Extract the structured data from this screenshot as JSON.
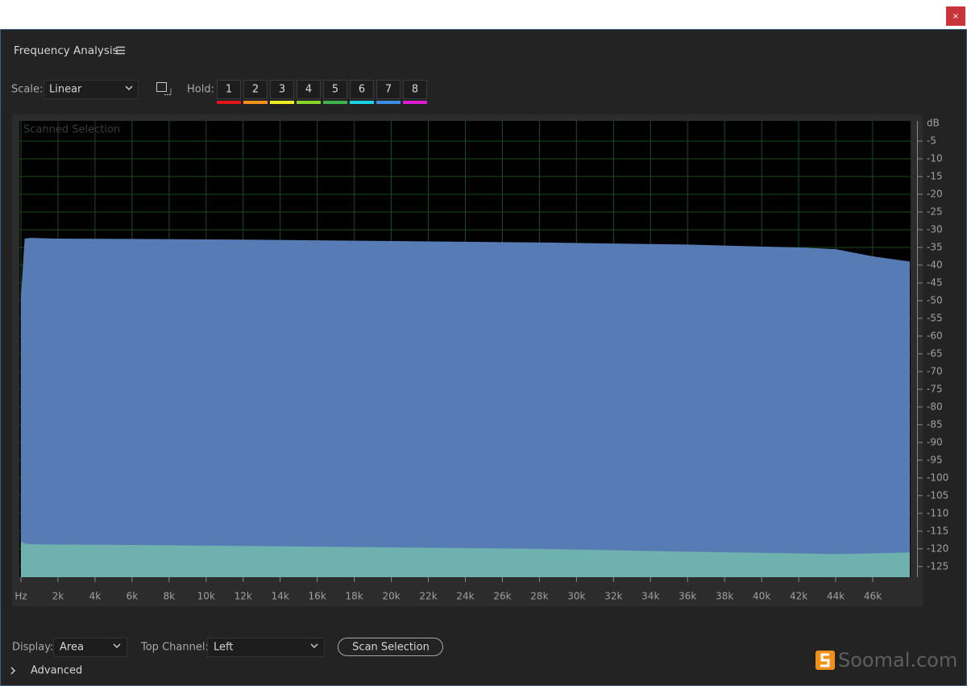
{
  "window": {
    "close": "×"
  },
  "panel": {
    "title": "Frequency Analysis"
  },
  "controls": {
    "scale_label": "Scale:",
    "scale_value": "Linear",
    "hold_label": "Hold:",
    "hold": [
      {
        "label": "1",
        "color": "#e3141c"
      },
      {
        "label": "2",
        "color": "#f3901b"
      },
      {
        "label": "3",
        "color": "#f2ec24"
      },
      {
        "label": "4",
        "color": "#86d62a"
      },
      {
        "label": "5",
        "color": "#3fb34c"
      },
      {
        "label": "6",
        "color": "#1bd3e6"
      },
      {
        "label": "7",
        "color": "#3a8fe6"
      },
      {
        "label": "8",
        "color": "#e01bd6"
      }
    ]
  },
  "chart_data": {
    "type": "area",
    "annotation": "Scanned Selection",
    "y_unit": "dB",
    "x": [
      0,
      200,
      500,
      2000,
      6000,
      12000,
      20000,
      28000,
      36000,
      42000,
      44000,
      46000,
      48000
    ],
    "series": [
      {
        "color": "#5a7fba",
        "values": [
          -49,
          -32.5,
          -32.3,
          -32.5,
          -32.6,
          -32.8,
          -33.2,
          -33.6,
          -34.2,
          -35,
          -35.5,
          -37.5,
          -39
        ]
      },
      {
        "color": "#6fb3ad",
        "values": [
          -118,
          -118.5,
          -118.7,
          -118.8,
          -118.9,
          -119.2,
          -119.6,
          -120,
          -120.8,
          -121.3,
          -121.5,
          -121.3,
          -121
        ]
      }
    ],
    "xlim": [
      0,
      48000
    ],
    "ylim": [
      -128,
      0
    ],
    "xticks": [
      {
        "value": 0,
        "label": "Hz"
      },
      {
        "value": 2000,
        "label": "2k"
      },
      {
        "value": 4000,
        "label": "4k"
      },
      {
        "value": 6000,
        "label": "6k"
      },
      {
        "value": 8000,
        "label": "8k"
      },
      {
        "value": 10000,
        "label": "10k"
      },
      {
        "value": 12000,
        "label": "12k"
      },
      {
        "value": 14000,
        "label": "14k"
      },
      {
        "value": 16000,
        "label": "16k"
      },
      {
        "value": 18000,
        "label": "18k"
      },
      {
        "value": 20000,
        "label": "20k"
      },
      {
        "value": 22000,
        "label": "22k"
      },
      {
        "value": 24000,
        "label": "24k"
      },
      {
        "value": 26000,
        "label": "26k"
      },
      {
        "value": 28000,
        "label": "28k"
      },
      {
        "value": 30000,
        "label": "30k"
      },
      {
        "value": 32000,
        "label": "32k"
      },
      {
        "value": 34000,
        "label": "34k"
      },
      {
        "value": 36000,
        "label": "36k"
      },
      {
        "value": 38000,
        "label": "38k"
      },
      {
        "value": 40000,
        "label": "40k"
      },
      {
        "value": 42000,
        "label": "42k"
      },
      {
        "value": 44000,
        "label": "44k"
      },
      {
        "value": 46000,
        "label": "46k"
      }
    ],
    "yticks": [
      -5,
      -10,
      -15,
      -20,
      -25,
      -30,
      -35,
      -40,
      -45,
      -50,
      -55,
      -60,
      -65,
      -70,
      -75,
      -80,
      -85,
      -90,
      -95,
      -100,
      -105,
      -110,
      -115,
      -120,
      -125
    ],
    "grid": true,
    "grid_color": "#1c4a1f"
  },
  "footer": {
    "display_label": "Display:",
    "display_value": "Area",
    "channel_label": "Top Channel:",
    "channel_value": "Left",
    "scan_button": "Scan Selection",
    "advanced": "Advanced"
  },
  "watermark": "Soomal.com"
}
